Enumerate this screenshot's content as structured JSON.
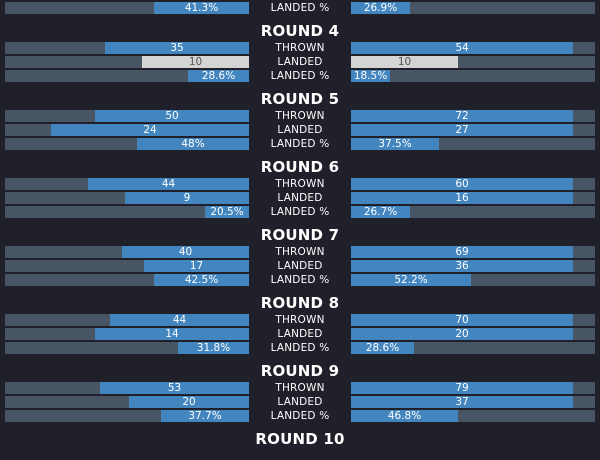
{
  "colors": {
    "background": "#1f2029",
    "track": "#485565",
    "fill": "#4285bf",
    "muted_fill": "#d4d4d4"
  },
  "rounds": [
    {
      "title": "",
      "rows": [
        {
          "label": "LANDED %",
          "left": {
            "value": "41.3%",
            "fraction": 0.39
          },
          "right": {
            "value": "26.9%",
            "fraction": 0.24
          }
        }
      ]
    },
    {
      "title": "ROUND 4",
      "rows": [
        {
          "label": "THROWN",
          "left": {
            "value": "35",
            "fraction": 0.59
          },
          "right": {
            "value": "54",
            "fraction": 0.91
          }
        },
        {
          "label": "LANDED",
          "left": {
            "value": "10",
            "fraction": 0.44,
            "muted": true
          },
          "right": {
            "value": "10",
            "fraction": 0.44,
            "muted": true
          }
        },
        {
          "label": "LANDED %",
          "left": {
            "value": "28.6%",
            "fraction": 0.25
          },
          "right": {
            "value": "18.5%",
            "fraction": 0.16
          }
        }
      ]
    },
    {
      "title": "ROUND 5",
      "rows": [
        {
          "label": "THROWN",
          "left": {
            "value": "50",
            "fraction": 0.63
          },
          "right": {
            "value": "72",
            "fraction": 0.91
          }
        },
        {
          "label": "LANDED",
          "left": {
            "value": "24",
            "fraction": 0.81
          },
          "right": {
            "value": "27",
            "fraction": 0.91
          }
        },
        {
          "label": "LANDED %",
          "left": {
            "value": "48%",
            "fraction": 0.46
          },
          "right": {
            "value": "37.5%",
            "fraction": 0.36
          }
        }
      ]
    },
    {
      "title": "ROUND 6",
      "rows": [
        {
          "label": "THROWN",
          "left": {
            "value": "44",
            "fraction": 0.66
          },
          "right": {
            "value": "60",
            "fraction": 0.91
          }
        },
        {
          "label": "LANDED",
          "left": {
            "value": "9",
            "fraction": 0.51
          },
          "right": {
            "value": "16",
            "fraction": 0.91
          }
        },
        {
          "label": "LANDED %",
          "left": {
            "value": "20.5%",
            "fraction": 0.18
          },
          "right": {
            "value": "26.7%",
            "fraction": 0.24
          }
        }
      ]
    },
    {
      "title": "ROUND 7",
      "rows": [
        {
          "label": "THROWN",
          "left": {
            "value": "40",
            "fraction": 0.52
          },
          "right": {
            "value": "69",
            "fraction": 0.91
          }
        },
        {
          "label": "LANDED",
          "left": {
            "value": "17",
            "fraction": 0.43
          },
          "right": {
            "value": "36",
            "fraction": 0.91
          }
        },
        {
          "label": "LANDED %",
          "left": {
            "value": "42.5%",
            "fraction": 0.39
          },
          "right": {
            "value": "52.2%",
            "fraction": 0.49
          }
        }
      ]
    },
    {
      "title": "ROUND 8",
      "rows": [
        {
          "label": "THROWN",
          "left": {
            "value": "44",
            "fraction": 0.57
          },
          "right": {
            "value": "70",
            "fraction": 0.91
          }
        },
        {
          "label": "LANDED",
          "left": {
            "value": "14",
            "fraction": 0.63
          },
          "right": {
            "value": "20",
            "fraction": 0.91
          }
        },
        {
          "label": "LANDED %",
          "left": {
            "value": "31.8%",
            "fraction": 0.29
          },
          "right": {
            "value": "28.6%",
            "fraction": 0.26
          }
        }
      ]
    },
    {
      "title": "ROUND 9",
      "rows": [
        {
          "label": "THROWN",
          "left": {
            "value": "53",
            "fraction": 0.61
          },
          "right": {
            "value": "79",
            "fraction": 0.91
          }
        },
        {
          "label": "LANDED",
          "left": {
            "value": "20",
            "fraction": 0.49
          },
          "right": {
            "value": "37",
            "fraction": 0.91
          }
        },
        {
          "label": "LANDED %",
          "left": {
            "value": "37.7%",
            "fraction": 0.36
          },
          "right": {
            "value": "46.8%",
            "fraction": 0.44
          }
        }
      ]
    },
    {
      "title": "ROUND 10",
      "rows": []
    }
  ]
}
